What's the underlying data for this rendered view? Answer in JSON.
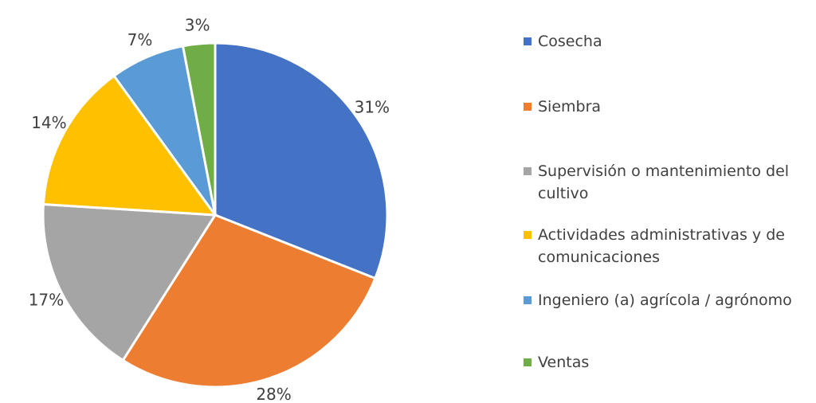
{
  "chart_data": {
    "type": "pie",
    "categories": [
      "Cosecha",
      "Siembra",
      "Supervisión o mantenimiento del cultivo",
      "Actividades administrativas y de comunicaciones",
      "Ingeniero (a) agrícola / agrónomo",
      "Ventas"
    ],
    "values": [
      31,
      28,
      17,
      14,
      7,
      3
    ],
    "value_labels": [
      "31%",
      "28%",
      "17%",
      "14%",
      "7%",
      "3%"
    ],
    "colors": [
      "#4472c4",
      "#ed7d31",
      "#a5a5a5",
      "#ffc000",
      "#5b9bd5",
      "#70ad47"
    ],
    "legend": "right"
  }
}
